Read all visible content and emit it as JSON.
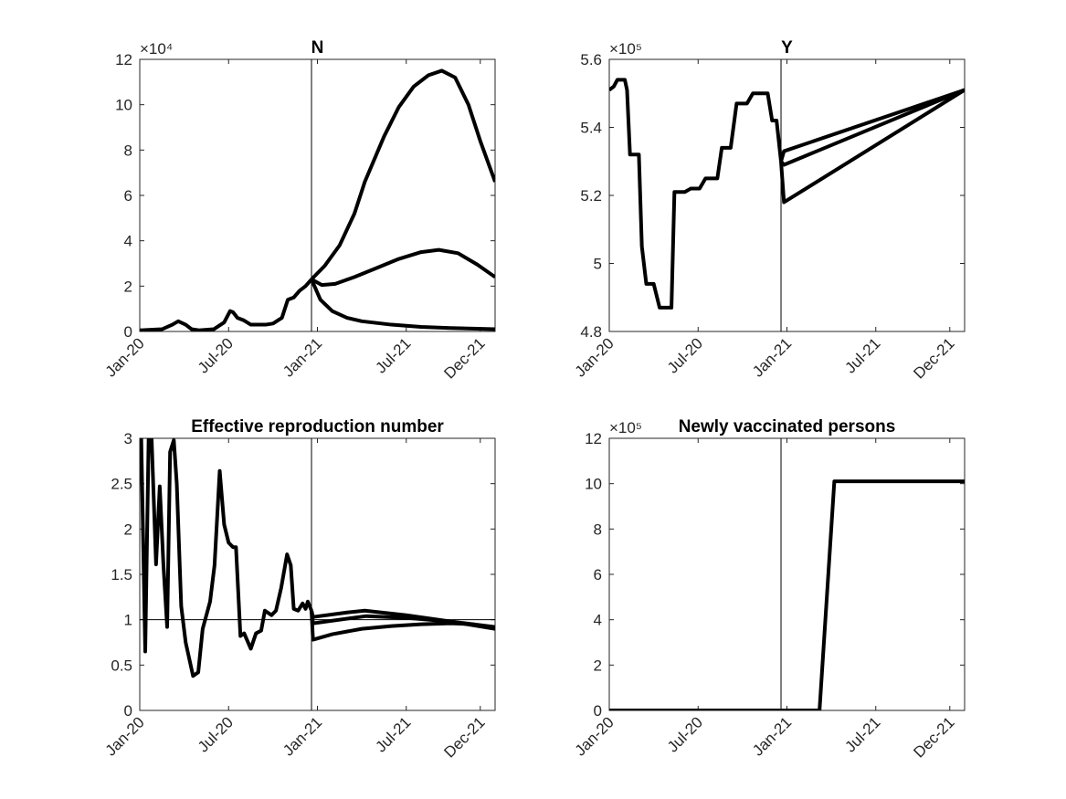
{
  "chart_data": [
    {
      "type": "line",
      "title": "N",
      "y_exponent": "×10⁴",
      "xlim": [
        0,
        24
      ],
      "ylim": [
        0,
        12
      ],
      "xticks": [
        {
          "value": 0,
          "label": "Jan-20"
        },
        {
          "value": 6,
          "label": "Jul-20"
        },
        {
          "value": 12,
          "label": "Jan-21"
        },
        {
          "value": 18,
          "label": "Jul-21"
        },
        {
          "value": 23,
          "label": "Dec-21"
        }
      ],
      "yticks": [
        0,
        2,
        4,
        6,
        8,
        10,
        12
      ],
      "vline": 11.6,
      "series": [
        {
          "color": "#000000",
          "x": [
            0,
            1.5,
            2.2,
            2.6,
            3.1,
            3.5,
            4,
            5,
            5.7,
            6.1,
            6.3,
            6.6,
            7,
            7.5,
            8,
            8.5,
            9,
            9.6,
            10.0,
            10.4,
            10.8,
            11.2,
            11.6
          ],
          "values": [
            0.05,
            0.1,
            0.3,
            0.45,
            0.3,
            0.1,
            0.05,
            0.1,
            0.4,
            0.9,
            0.85,
            0.6,
            0.5,
            0.3,
            0.3,
            0.3,
            0.35,
            0.6,
            1.4,
            1.5,
            1.8,
            2.0,
            2.3
          ]
        },
        {
          "color": "#000000",
          "x": [
            11.6,
            12.5,
            13.5,
            14.5,
            15.2,
            16.5,
            17.5,
            18.5,
            19.5,
            20.4,
            21.3,
            22.2,
            23,
            24
          ],
          "values": [
            2.3,
            2.9,
            3.8,
            5.2,
            6.6,
            8.6,
            9.9,
            10.8,
            11.3,
            11.5,
            11.2,
            10.0,
            8.4,
            6.6
          ]
        },
        {
          "color": "#000000",
          "x": [
            11.6,
            12.3,
            13.2,
            14.5,
            16,
            17.5,
            19,
            20.2,
            21.5,
            22.8,
            24
          ],
          "values": [
            2.3,
            2.05,
            2.1,
            2.4,
            2.8,
            3.2,
            3.5,
            3.6,
            3.45,
            2.95,
            2.4
          ]
        },
        {
          "color": "#000000",
          "x": [
            11.6,
            12.2,
            13,
            14,
            15,
            17,
            19,
            21,
            24
          ],
          "values": [
            2.3,
            1.4,
            0.9,
            0.6,
            0.45,
            0.3,
            0.2,
            0.15,
            0.1
          ]
        }
      ]
    },
    {
      "type": "line",
      "title": "Y",
      "y_exponent": "×10⁵",
      "xlim": [
        0,
        24
      ],
      "ylim": [
        4.8,
        5.6
      ],
      "xticks": [
        {
          "value": 0,
          "label": "Jan-20"
        },
        {
          "value": 6,
          "label": "Jul-20"
        },
        {
          "value": 12,
          "label": "Jan-21"
        },
        {
          "value": 18,
          "label": "Jul-21"
        },
        {
          "value": 23,
          "label": "Dec-21"
        }
      ],
      "yticks": [
        4.8,
        5,
        5.2,
        5.4,
        5.6
      ],
      "vline": 11.6,
      "series": [
        {
          "color": "#000000",
          "x": [
            0,
            0.3,
            0.55,
            1.05,
            1.2,
            1.4,
            2.0,
            2.2,
            2.5,
            3.0,
            3.4,
            4.2,
            4.4,
            5.1,
            5.5,
            6.1,
            6.5,
            7.3,
            7.6,
            8.2,
            8.6,
            9.3,
            9.7,
            10.7,
            11.0,
            11.3,
            11.6
          ],
          "values": [
            5.51,
            5.52,
            5.54,
            5.54,
            5.51,
            5.32,
            5.32,
            5.05,
            4.94,
            4.94,
            4.87,
            4.87,
            5.21,
            5.21,
            5.22,
            5.22,
            5.25,
            5.25,
            5.34,
            5.34,
            5.47,
            5.47,
            5.5,
            5.5,
            5.42,
            5.42,
            5.3
          ]
        },
        {
          "color": "#000000",
          "x": [
            11.6,
            11.8,
            24
          ],
          "values": [
            5.3,
            5.33,
            5.51
          ]
        },
        {
          "color": "#000000",
          "x": [
            11.6,
            11.8,
            24
          ],
          "values": [
            5.3,
            5.29,
            5.51
          ]
        },
        {
          "color": "#000000",
          "x": [
            11.6,
            11.8,
            24
          ],
          "values": [
            5.3,
            5.18,
            5.51
          ]
        }
      ]
    },
    {
      "type": "line",
      "title": "Effective reproduction number",
      "xlim": [
        0,
        24
      ],
      "ylim": [
        0,
        3
      ],
      "xticks": [
        {
          "value": 0,
          "label": "Jan-20"
        },
        {
          "value": 6,
          "label": "Jul-20"
        },
        {
          "value": 12,
          "label": "Jan-21"
        },
        {
          "value": 18,
          "label": "Jul-21"
        },
        {
          "value": 23,
          "label": "Dec-21"
        }
      ],
      "yticks": [
        0,
        0.5,
        1,
        1.5,
        2,
        2.5,
        3
      ],
      "vline": 11.6,
      "hline": 1,
      "series": [
        {
          "color": "#000000",
          "x": [
            0.1,
            0.37,
            0.6,
            0.8,
            1.1,
            1.35,
            1.6,
            1.85,
            2.05,
            2.3,
            2.5,
            2.8,
            3.1,
            3.6,
            3.95,
            4.25,
            4.75,
            5.05,
            5.4,
            5.7,
            6.0,
            6.3,
            6.5,
            6.8,
            7.05,
            7.5,
            7.85,
            8.2,
            8.45,
            8.9,
            9.2,
            9.55,
            9.95,
            10.2,
            10.4,
            10.7,
            11.0,
            11.2,
            11.35,
            11.6
          ],
          "values": [
            3.0,
            0.65,
            3.0,
            3.0,
            1.61,
            2.47,
            1.6,
            0.92,
            2.85,
            2.98,
            2.5,
            1.15,
            0.75,
            0.38,
            0.42,
            0.9,
            1.2,
            1.6,
            2.64,
            2.05,
            1.85,
            1.8,
            1.8,
            0.82,
            0.85,
            0.68,
            0.85,
            0.88,
            1.1,
            1.05,
            1.1,
            1.35,
            1.72,
            1.6,
            1.12,
            1.1,
            1.18,
            1.12,
            1.2,
            1.1
          ]
        },
        {
          "color": "#000000",
          "x": [
            11.6,
            11.7,
            14,
            15.2,
            18,
            21,
            24
          ],
          "values": [
            1.1,
            1.03,
            1.08,
            1.1,
            1.05,
            0.98,
            0.92
          ]
        },
        {
          "color": "#000000",
          "x": [
            11.6,
            11.7,
            15.3,
            18,
            21,
            24
          ],
          "values": [
            1.1,
            0.96,
            1.04,
            1.02,
            0.98,
            0.9
          ]
        },
        {
          "color": "#000000",
          "x": [
            11.6,
            11.7,
            13,
            15,
            17,
            19,
            21,
            22.5,
            24
          ],
          "values": [
            1.1,
            0.78,
            0.84,
            0.9,
            0.93,
            0.95,
            0.96,
            0.95,
            0.9
          ]
        }
      ]
    },
    {
      "type": "line",
      "title": "Newly vaccinated persons",
      "y_exponent": "×10⁵",
      "xlim": [
        0,
        24
      ],
      "ylim": [
        0,
        12
      ],
      "xticks": [
        {
          "value": 0,
          "label": "Jan-20"
        },
        {
          "value": 6,
          "label": "Jul-20"
        },
        {
          "value": 12,
          "label": "Jan-21"
        },
        {
          "value": 18,
          "label": "Jul-21"
        },
        {
          "value": 23,
          "label": "Dec-21"
        }
      ],
      "yticks": [
        0,
        2,
        4,
        6,
        8,
        10,
        12
      ],
      "vline": 11.6,
      "series": [
        {
          "color": "#000000",
          "x": [
            0,
            14.2,
            15.2,
            24
          ],
          "values": [
            0,
            0,
            10.1,
            10.1
          ]
        }
      ]
    }
  ]
}
